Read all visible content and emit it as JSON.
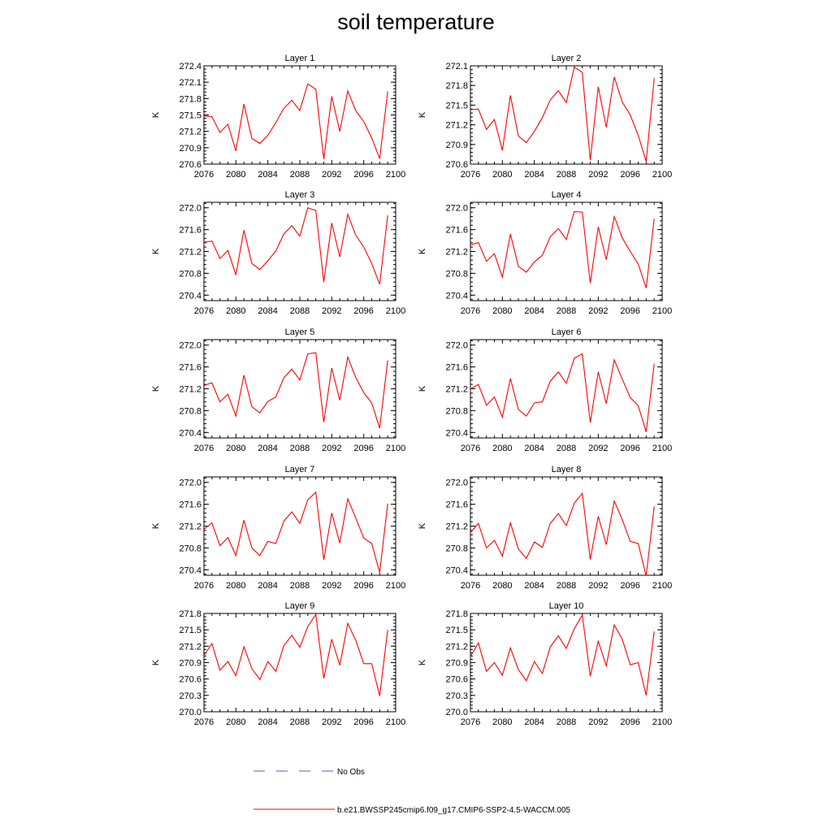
{
  "title": "soil temperature",
  "legend": {
    "obs_label": "No Obs",
    "obs_color": "#5a5ab4",
    "model_label": "b.e21.BWSSP245cmip6.f09_g17.CMIP6-SSP2-4.5-WACCM.005",
    "model_color": "#ff0000"
  },
  "chart_data": [
    {
      "type": "line",
      "title": "Layer 1",
      "ylabel": "K",
      "xlim": [
        2076,
        2100
      ],
      "xticks": [
        2076,
        2080,
        2084,
        2088,
        2092,
        2096,
        2100
      ],
      "ylim": [
        270.6,
        272.4
      ],
      "yticks": [
        "270.6",
        "270.9",
        "271.2",
        "271.5",
        "271.8",
        "272.1",
        "272.4"
      ],
      "x": [
        2076,
        2077,
        2078,
        2079,
        2080,
        2081,
        2082,
        2083,
        2084,
        2085,
        2086,
        2087,
        2088,
        2089,
        2090,
        2091,
        2092,
        2093,
        2094,
        2095,
        2096,
        2097,
        2098,
        2099
      ],
      "series": [
        {
          "color": "#ff0000",
          "values": [
            271.48,
            271.47,
            271.18,
            271.33,
            270.84,
            271.7,
            271.07,
            270.98,
            271.13,
            271.36,
            271.62,
            271.77,
            271.58,
            272.07,
            271.97,
            270.69,
            271.84,
            271.2,
            271.94,
            271.58,
            271.38,
            271.08,
            270.7,
            271.93
          ]
        }
      ]
    },
    {
      "type": "line",
      "title": "Layer 2",
      "ylabel": "K",
      "xlim": [
        2076,
        2100
      ],
      "xticks": [
        2076,
        2080,
        2084,
        2088,
        2092,
        2096,
        2100
      ],
      "ylim": [
        270.6,
        272.1
      ],
      "yticks": [
        "270.6",
        "270.9",
        "271.2",
        "271.5",
        "271.8",
        "272.1"
      ],
      "x": [
        2076,
        2077,
        2078,
        2079,
        2080,
        2081,
        2082,
        2083,
        2084,
        2085,
        2086,
        2087,
        2088,
        2089,
        2090,
        2091,
        2092,
        2093,
        2094,
        2095,
        2096,
        2097,
        2098,
        2099
      ],
      "series": [
        {
          "color": "#ff0000",
          "values": [
            271.43,
            271.44,
            271.13,
            271.28,
            270.81,
            271.65,
            271.03,
            270.93,
            271.1,
            271.31,
            271.58,
            271.72,
            271.54,
            272.08,
            272.0,
            270.66,
            271.78,
            271.16,
            271.93,
            271.55,
            271.35,
            271.04,
            270.64,
            271.91
          ]
        }
      ]
    },
    {
      "type": "line",
      "title": "Layer 3",
      "ylabel": "K",
      "xlim": [
        2076,
        2100
      ],
      "xticks": [
        2076,
        2080,
        2084,
        2088,
        2092,
        2096,
        2100
      ],
      "ylim": [
        270.3,
        272.1
      ],
      "yticks": [
        "270.4",
        "270.8",
        "271.2",
        "271.6",
        "272.0"
      ],
      "x": [
        2076,
        2077,
        2078,
        2079,
        2080,
        2081,
        2082,
        2083,
        2084,
        2085,
        2086,
        2087,
        2088,
        2089,
        2090,
        2091,
        2092,
        2093,
        2094,
        2095,
        2096,
        2097,
        2098,
        2099
      ],
      "series": [
        {
          "color": "#ff0000",
          "values": [
            271.37,
            271.39,
            271.07,
            271.22,
            270.77,
            271.59,
            270.98,
            270.87,
            271.03,
            271.21,
            271.52,
            271.67,
            271.48,
            272.0,
            271.95,
            270.64,
            271.72,
            271.1,
            271.88,
            271.5,
            271.28,
            270.98,
            270.6,
            271.86
          ]
        }
      ]
    },
    {
      "type": "line",
      "title": "Layer 4",
      "ylabel": "K",
      "xlim": [
        2076,
        2100
      ],
      "xticks": [
        2076,
        2080,
        2084,
        2088,
        2092,
        2096,
        2100
      ],
      "ylim": [
        270.3,
        272.1
      ],
      "yticks": [
        "270.4",
        "270.8",
        "271.2",
        "271.6",
        "272.0"
      ],
      "x": [
        2076,
        2077,
        2078,
        2079,
        2080,
        2081,
        2082,
        2083,
        2084,
        2085,
        2086,
        2087,
        2088,
        2089,
        2090,
        2091,
        2092,
        2093,
        2094,
        2095,
        2096,
        2097,
        2098,
        2099
      ],
      "series": [
        {
          "color": "#ff0000",
          "values": [
            271.32,
            271.36,
            271.02,
            271.16,
            270.73,
            271.52,
            270.93,
            270.82,
            271.01,
            271.13,
            271.47,
            271.62,
            271.42,
            271.93,
            271.92,
            270.62,
            271.65,
            271.05,
            271.84,
            271.45,
            271.2,
            270.97,
            270.53,
            271.8
          ]
        }
      ]
    },
    {
      "type": "line",
      "title": "Layer 5",
      "ylabel": "K",
      "xlim": [
        2076,
        2100
      ],
      "xticks": [
        2076,
        2080,
        2084,
        2088,
        2092,
        2096,
        2100
      ],
      "ylim": [
        270.3,
        272.1
      ],
      "yticks": [
        "270.4",
        "270.8",
        "271.2",
        "271.6",
        "272.0"
      ],
      "x": [
        2076,
        2077,
        2078,
        2079,
        2080,
        2081,
        2082,
        2083,
        2084,
        2085,
        2086,
        2087,
        2088,
        2089,
        2090,
        2091,
        2092,
        2093,
        2094,
        2095,
        2096,
        2097,
        2098,
        2099
      ],
      "series": [
        {
          "color": "#ff0000",
          "values": [
            271.26,
            271.31,
            270.96,
            271.1,
            270.7,
            271.45,
            270.87,
            270.76,
            270.97,
            271.05,
            271.4,
            271.56,
            271.36,
            271.84,
            271.86,
            270.59,
            271.58,
            270.99,
            271.78,
            271.41,
            271.13,
            270.94,
            270.48,
            271.72
          ]
        }
      ]
    },
    {
      "type": "line",
      "title": "Layer 6",
      "ylabel": "K",
      "xlim": [
        2076,
        2100
      ],
      "xticks": [
        2076,
        2080,
        2084,
        2088,
        2092,
        2096,
        2100
      ],
      "ylim": [
        270.3,
        272.1
      ],
      "yticks": [
        "270.4",
        "270.8",
        "271.2",
        "271.6",
        "272.0"
      ],
      "x": [
        2076,
        2077,
        2078,
        2079,
        2080,
        2081,
        2082,
        2083,
        2084,
        2085,
        2086,
        2087,
        2088,
        2089,
        2090,
        2091,
        2092,
        2093,
        2094,
        2095,
        2096,
        2097,
        2098,
        2099
      ],
      "series": [
        {
          "color": "#ff0000",
          "values": [
            271.2,
            271.28,
            270.9,
            271.05,
            270.68,
            271.39,
            270.82,
            270.7,
            270.94,
            270.96,
            271.34,
            271.51,
            271.3,
            271.76,
            271.84,
            270.58,
            271.51,
            270.93,
            271.73,
            271.38,
            271.04,
            270.89,
            270.41,
            271.66
          ]
        }
      ]
    },
    {
      "type": "line",
      "title": "Layer 7",
      "ylabel": "K",
      "xlim": [
        2076,
        2100
      ],
      "xticks": [
        2076,
        2080,
        2084,
        2088,
        2092,
        2096,
        2100
      ],
      "ylim": [
        270.3,
        272.1
      ],
      "yticks": [
        "270.4",
        "270.8",
        "271.2",
        "271.6",
        "272.0"
      ],
      "x": [
        2076,
        2077,
        2078,
        2079,
        2080,
        2081,
        2082,
        2083,
        2084,
        2085,
        2086,
        2087,
        2088,
        2089,
        2090,
        2091,
        2092,
        2093,
        2094,
        2095,
        2096,
        2097,
        2098,
        2099
      ],
      "series": [
        {
          "color": "#ff0000",
          "values": [
            271.14,
            271.26,
            270.84,
            270.99,
            270.66,
            271.31,
            270.8,
            270.66,
            270.92,
            270.88,
            271.29,
            271.46,
            271.25,
            271.68,
            271.82,
            270.58,
            271.44,
            270.89,
            271.7,
            271.35,
            270.98,
            270.88,
            270.35,
            271.61
          ]
        }
      ]
    },
    {
      "type": "line",
      "title": "Layer 8",
      "ylabel": "K",
      "xlim": [
        2076,
        2100
      ],
      "xticks": [
        2076,
        2080,
        2084,
        2088,
        2092,
        2096,
        2100
      ],
      "ylim": [
        270.3,
        272.1
      ],
      "yticks": [
        "270.4",
        "270.8",
        "271.2",
        "271.6",
        "272.0"
      ],
      "x": [
        2076,
        2077,
        2078,
        2079,
        2080,
        2081,
        2082,
        2083,
        2084,
        2085,
        2086,
        2087,
        2088,
        2089,
        2090,
        2091,
        2092,
        2093,
        2094,
        2095,
        2096,
        2097,
        2098,
        2099
      ],
      "series": [
        {
          "color": "#ff0000",
          "values": [
            271.08,
            271.25,
            270.8,
            270.94,
            270.65,
            271.26,
            270.78,
            270.61,
            270.91,
            270.81,
            271.25,
            271.43,
            271.21,
            271.62,
            271.8,
            270.59,
            271.38,
            270.86,
            271.66,
            271.32,
            270.92,
            270.88,
            270.29,
            271.56
          ]
        }
      ]
    },
    {
      "type": "line",
      "title": "Layer 9",
      "ylabel": "K",
      "xlim": [
        2076,
        2100
      ],
      "xticks": [
        2076,
        2080,
        2084,
        2088,
        2092,
        2096,
        2100
      ],
      "ylim": [
        270.0,
        271.8
      ],
      "yticks": [
        "270.0",
        "270.3",
        "270.6",
        "270.9",
        "271.2",
        "271.5",
        "271.8"
      ],
      "x": [
        2076,
        2077,
        2078,
        2079,
        2080,
        2081,
        2082,
        2083,
        2084,
        2085,
        2086,
        2087,
        2088,
        2089,
        2090,
        2091,
        2092,
        2093,
        2094,
        2095,
        2096,
        2097,
        2098,
        2099
      ],
      "series": [
        {
          "color": "#ff0000",
          "values": [
            271.03,
            271.25,
            270.76,
            270.92,
            270.66,
            271.19,
            270.79,
            270.59,
            270.92,
            270.74,
            271.21,
            271.4,
            271.18,
            271.56,
            271.78,
            270.61,
            271.33,
            270.85,
            271.62,
            271.31,
            270.88,
            270.88,
            270.29,
            271.5
          ]
        }
      ]
    },
    {
      "type": "line",
      "title": "Layer 10",
      "ylabel": "K",
      "xlim": [
        2076,
        2100
      ],
      "xticks": [
        2076,
        2080,
        2084,
        2088,
        2092,
        2096,
        2100
      ],
      "ylim": [
        270.0,
        271.8
      ],
      "yticks": [
        "270.0",
        "270.3",
        "270.6",
        "270.9",
        "271.2",
        "271.5",
        "271.8"
      ],
      "x": [
        2076,
        2077,
        2078,
        2079,
        2080,
        2081,
        2082,
        2083,
        2084,
        2085,
        2086,
        2087,
        2088,
        2089,
        2090,
        2091,
        2092,
        2093,
        2094,
        2095,
        2096,
        2097,
        2098,
        2099
      ],
      "series": [
        {
          "color": "#ff0000",
          "values": [
            271.01,
            271.26,
            270.74,
            270.9,
            270.67,
            271.17,
            270.77,
            270.57,
            270.92,
            270.7,
            271.19,
            271.39,
            271.16,
            271.52,
            271.77,
            270.65,
            271.29,
            270.84,
            271.59,
            271.33,
            270.86,
            270.9,
            270.3,
            271.47
          ]
        }
      ]
    }
  ]
}
